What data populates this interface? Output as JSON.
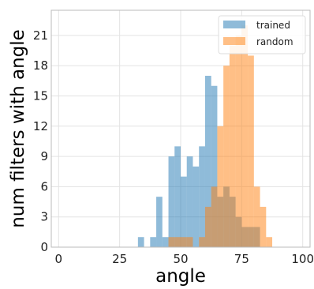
{
  "chart_data": {
    "type": "bar",
    "histogram": true,
    "xlabel": "angle",
    "ylabel": "num filters with angle",
    "xlim": [
      -3,
      103
    ],
    "ylim": [
      0,
      23.5
    ],
    "xticks": [
      0,
      25,
      50,
      75,
      100
    ],
    "yticks": [
      0,
      3,
      6,
      9,
      12,
      15,
      18,
      21
    ],
    "grid": true,
    "legend_position": "top-right",
    "bin_width": 2.5,
    "series": [
      {
        "name": "trained",
        "color": "#1f77b4",
        "bins": [
          {
            "x": 32.5,
            "value": 1
          },
          {
            "x": 37.5,
            "value": 1
          },
          {
            "x": 40.0,
            "value": 5
          },
          {
            "x": 42.5,
            "value": 1
          },
          {
            "x": 45.0,
            "value": 9
          },
          {
            "x": 47.5,
            "value": 10
          },
          {
            "x": 50.0,
            "value": 7
          },
          {
            "x": 52.5,
            "value": 9
          },
          {
            "x": 55.0,
            "value": 8
          },
          {
            "x": 57.5,
            "value": 10
          },
          {
            "x": 60.0,
            "value": 17
          },
          {
            "x": 62.5,
            "value": 16
          },
          {
            "x": 65.0,
            "value": 5
          },
          {
            "x": 67.5,
            "value": 6
          },
          {
            "x": 70.0,
            "value": 5
          },
          {
            "x": 72.5,
            "value": 3
          },
          {
            "x": 75.0,
            "value": 2
          },
          {
            "x": 77.5,
            "value": 2
          },
          {
            "x": 80.0,
            "value": 2
          }
        ]
      },
      {
        "name": "random",
        "color": "#ff7f0e",
        "bins": [
          {
            "x": 45.0,
            "value": 1
          },
          {
            "x": 47.5,
            "value": 1
          },
          {
            "x": 50.0,
            "value": 1
          },
          {
            "x": 52.5,
            "value": 1
          },
          {
            "x": 57.5,
            "value": 1
          },
          {
            "x": 60.0,
            "value": 4
          },
          {
            "x": 62.5,
            "value": 6
          },
          {
            "x": 65.0,
            "value": 12
          },
          {
            "x": 67.5,
            "value": 18
          },
          {
            "x": 70.0,
            "value": 20
          },
          {
            "x": 72.5,
            "value": 21
          },
          {
            "x": 75.0,
            "value": 22
          },
          {
            "x": 77.5,
            "value": 19
          },
          {
            "x": 80.0,
            "value": 6
          },
          {
            "x": 82.5,
            "value": 4
          },
          {
            "x": 85.0,
            "value": 1
          }
        ]
      }
    ]
  }
}
